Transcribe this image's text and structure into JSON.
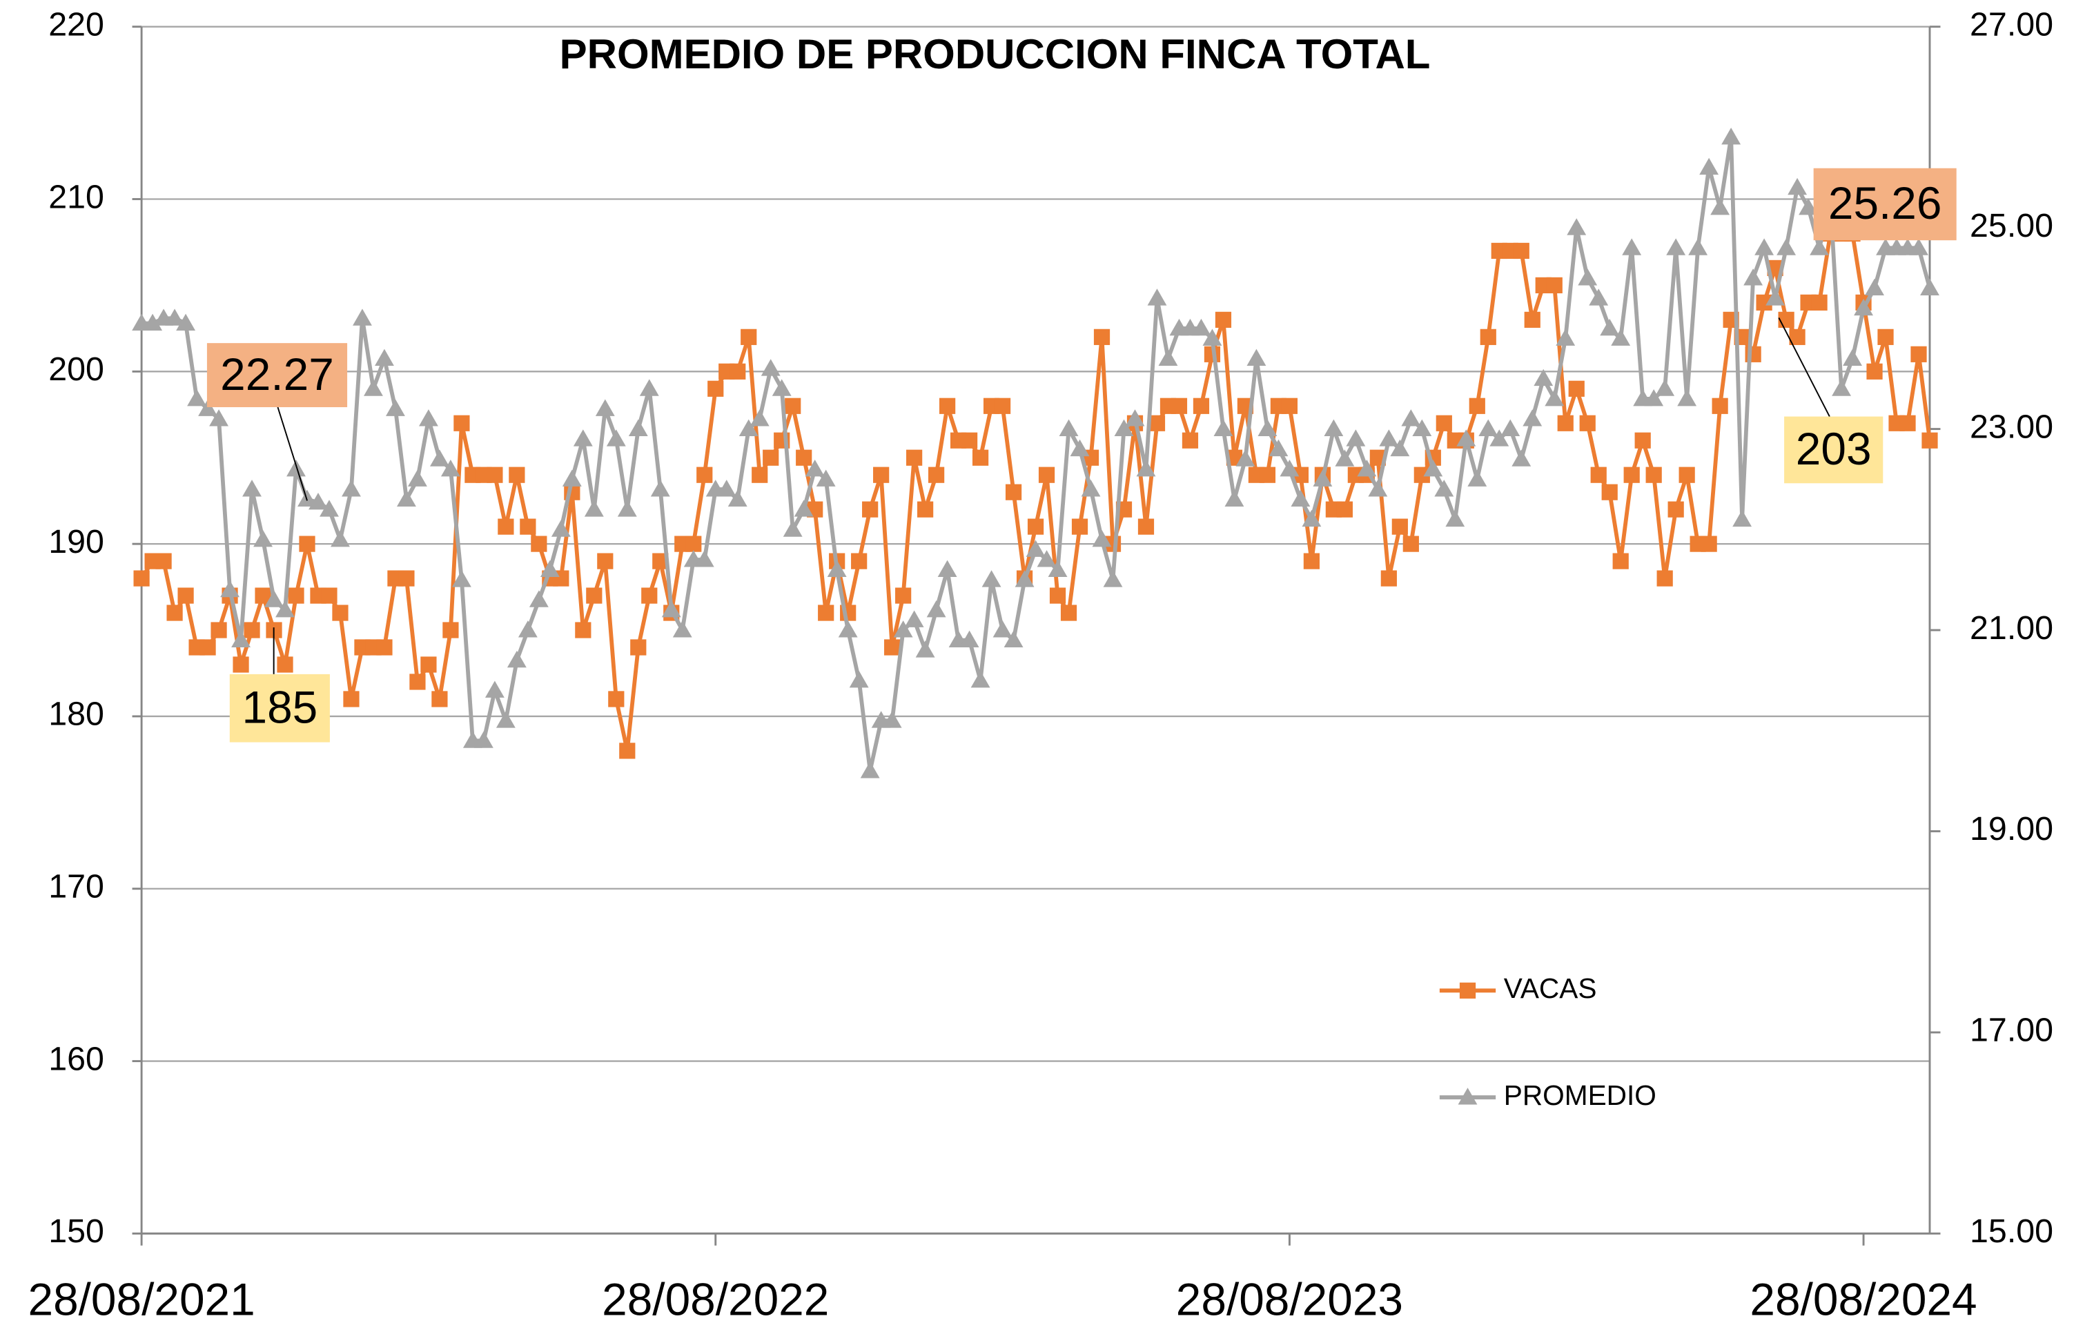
{
  "chart_data": {
    "type": "line",
    "title": "PROMEDIO DE PRODUCCION FINCA TOTAL",
    "categories": [
      "28/08/2021",
      null,
      null,
      null,
      null,
      null,
      null,
      null,
      null,
      null,
      null,
      null,
      null,
      null,
      null,
      null,
      null,
      null,
      null,
      null,
      null,
      null,
      null,
      null,
      null,
      null,
      null,
      null,
      null,
      null,
      null,
      null,
      null,
      null,
      null,
      null,
      null,
      null,
      null,
      null,
      null,
      null,
      null,
      null,
      null,
      null,
      null,
      null,
      null,
      null,
      null,
      null,
      "28/08/2022",
      null,
      null,
      null,
      null,
      null,
      null,
      null,
      null,
      null,
      null,
      null,
      null,
      null,
      null,
      null,
      null,
      null,
      null,
      null,
      null,
      null,
      null,
      null,
      null,
      null,
      null,
      null,
      null,
      null,
      null,
      null,
      null,
      null,
      null,
      null,
      null,
      null,
      null,
      null,
      null,
      null,
      null,
      null,
      null,
      null,
      null,
      null,
      null,
      null,
      null,
      null,
      "28/08/2023",
      null,
      null,
      null,
      null,
      null,
      null,
      null,
      null,
      null,
      null,
      null,
      null,
      null,
      null,
      null,
      null,
      null,
      null,
      null,
      null,
      null,
      null,
      null,
      null,
      null,
      null,
      null,
      null,
      null,
      null,
      null,
      null,
      null,
      null,
      null,
      null,
      null,
      null,
      null,
      null,
      null,
      null,
      null,
      null,
      null,
      null,
      null,
      null,
      null,
      null,
      null,
      "28/08/2024",
      null,
      null,
      null,
      null,
      null,
      null
    ],
    "series": [
      {
        "name": "VACAS",
        "color": "#ed7d31",
        "marker": "square",
        "axis": "y",
        "values": [
          188,
          189,
          189,
          186,
          187,
          184,
          184,
          185,
          187,
          183,
          185,
          187,
          185,
          183,
          187,
          190,
          187,
          187,
          186,
          181,
          184,
          184,
          184,
          188,
          188,
          182,
          183,
          181,
          185,
          197,
          194,
          194,
          194,
          191,
          194,
          191,
          190,
          188,
          188,
          193,
          185,
          187,
          189,
          181,
          178,
          184,
          187,
          189,
          186,
          190,
          190,
          194,
          199,
          200,
          200,
          202,
          194,
          195,
          196,
          198,
          195,
          192,
          186,
          189,
          186,
          189,
          192,
          194,
          184,
          187,
          195,
          192,
          194,
          198,
          196,
          196,
          195,
          198,
          198,
          193,
          188,
          191,
          194,
          187,
          186,
          191,
          195,
          202,
          190,
          192,
          197,
          191,
          197,
          198,
          198,
          196,
          198,
          201,
          203,
          195,
          198,
          194,
          194,
          198,
          198,
          194,
          189,
          194,
          192,
          192,
          194,
          194,
          195,
          188,
          191,
          190,
          194,
          195,
          197,
          196,
          196,
          198,
          202,
          207,
          207,
          207,
          203,
          205,
          205,
          197,
          199,
          197,
          194,
          193,
          189,
          194,
          196,
          194,
          188,
          192,
          194,
          190,
          190,
          198,
          203,
          202,
          201,
          204,
          206,
          203,
          202,
          204,
          204,
          208,
          208,
          208,
          204,
          200,
          202,
          197,
          197,
          201,
          196
        ]
      },
      {
        "name": "PROMEDIO",
        "color": "#a5a5a5",
        "marker": "triangle",
        "axis": "y2",
        "values": [
          24.05,
          24.05,
          24.1,
          24.1,
          24.05,
          23.3,
          23.2,
          23.1,
          21.4,
          20.9,
          22.4,
          21.9,
          21.3,
          21.2,
          22.6,
          22.3,
          22.27,
          22.2,
          21.9,
          22.4,
          24.1,
          23.4,
          23.7,
          23.2,
          22.3,
          22.5,
          23.1,
          22.7,
          22.6,
          21.5,
          19.9,
          19.9,
          20.4,
          20.1,
          20.7,
          21.0,
          21.3,
          21.6,
          22.0,
          22.5,
          22.9,
          22.2,
          23.2,
          22.9,
          22.2,
          23.0,
          23.4,
          22.4,
          21.2,
          21.0,
          21.7,
          21.7,
          22.4,
          22.4,
          22.3,
          23.0,
          23.1,
          23.6,
          23.4,
          22.0,
          22.2,
          22.6,
          22.5,
          21.6,
          21.0,
          20.5,
          19.6,
          20.1,
          20.1,
          21.0,
          21.1,
          20.8,
          21.2,
          21.6,
          20.9,
          20.9,
          20.5,
          21.5,
          21.0,
          20.9,
          21.5,
          21.8,
          21.7,
          21.6,
          23.0,
          22.8,
          22.4,
          21.9,
          21.5,
          23.0,
          23.1,
          22.6,
          24.3,
          23.7,
          24.0,
          24.0,
          24.0,
          23.9,
          23.0,
          22.3,
          22.7,
          23.7,
          23.0,
          22.8,
          22.6,
          22.3,
          22.1,
          22.5,
          23.0,
          22.7,
          22.9,
          22.6,
          22.4,
          22.9,
          22.8,
          23.1,
          23.0,
          22.6,
          22.4,
          22.1,
          22.9,
          22.5,
          23.0,
          22.9,
          23.0,
          22.7,
          23.1,
          23.5,
          23.3,
          23.9,
          25.0,
          24.5,
          24.3,
          24.0,
          23.9,
          24.8,
          23.3,
          23.3,
          23.4,
          24.8,
          23.3,
          24.8,
          25.6,
          25.2,
          25.9,
          22.1,
          24.5,
          24.8,
          24.3,
          24.8,
          25.4,
          25.2,
          24.8,
          25.26,
          23.4,
          23.7,
          24.2,
          24.4,
          24.8,
          24.8,
          24.8,
          24.8,
          24.4
        ]
      }
    ],
    "ylim": [
      150,
      220
    ],
    "yticks": [
      150,
      160,
      170,
      180,
      190,
      200,
      210,
      220
    ],
    "y2lim": [
      15,
      27
    ],
    "y2ticks": [
      {
        "value": 15,
        "label": "15.00"
      },
      {
        "value": 17,
        "label": "17.00"
      },
      {
        "value": 19,
        "label": "19.00"
      },
      {
        "value": 21,
        "label": "21.00"
      },
      {
        "value": 23,
        "label": "23.00"
      },
      {
        "value": 25,
        "label": "25.00"
      },
      {
        "value": 27,
        "label": "27.00"
      }
    ],
    "grid": true,
    "legend": "right",
    "annotations": [
      {
        "text": "22.27"
      },
      {
        "text": "185"
      },
      {
        "text": "25.26"
      },
      {
        "text": "203"
      }
    ]
  }
}
